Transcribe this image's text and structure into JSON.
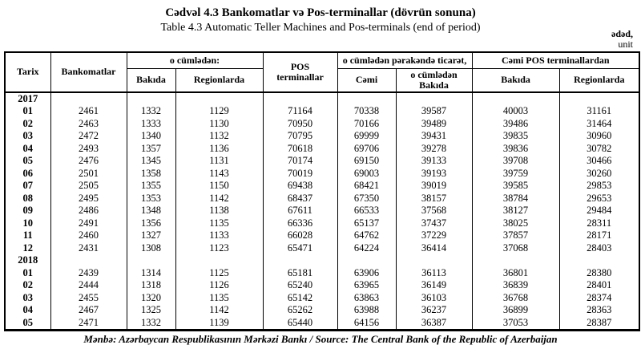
{
  "page": {
    "title_az": "Cədvəl 4.3 Bankomatlar və Pos-terminallar (dövrün sonuna)",
    "title_en": "Table 4.3 Automatic Teller Machines and Pos-terminals (end of period)",
    "unit_label_az": "ədəd,",
    "unit_label_en": "unit",
    "source_note": "Mənbə: Azərbaycan Respublikasının Mərkəzi Bankı / Source: The Central Bank of the Republic of Azerbaijan"
  },
  "table": {
    "headers": {
      "tarix": "Tarix",
      "bankomatlar": "Bankomatlar",
      "o_cumleden": "o cümlədən:",
      "bakida": "Bakıda",
      "regionlarda": "Regionlarda",
      "pos_terminallar": "POS terminallar",
      "perakende_ticaret": "o cümlədən pərakəndə ticarət,",
      "cemi": "Cəmi",
      "o_cumleden_bakida": "o cümlədən Bakıda",
      "cemi_pos_terminallardan": "Cəmi POS terminallardan",
      "bakida_pos": "Bakıda",
      "regionlarda_pos": "Regionlarda"
    },
    "groups": [
      {
        "year": "2017",
        "rows": [
          {
            "month": "01",
            "values": [
              "2461",
              "1332",
              "1129",
              "71164",
              "70338",
              "39587",
              "40003",
              "31161"
            ]
          },
          {
            "month": "02",
            "values": [
              "2463",
              "1333",
              "1130",
              "70950",
              "70166",
              "39489",
              "39486",
              "31464"
            ]
          },
          {
            "month": "03",
            "values": [
              "2472",
              "1340",
              "1132",
              "70795",
              "69999",
              "39431",
              "39835",
              "30960"
            ]
          },
          {
            "month": "04",
            "values": [
              "2493",
              "1357",
              "1136",
              "70618",
              "69706",
              "39278",
              "39836",
              "30782"
            ]
          },
          {
            "month": "05",
            "values": [
              "2476",
              "1345",
              "1131",
              "70174",
              "69150",
              "39133",
              "39708",
              "30466"
            ]
          },
          {
            "month": "06",
            "values": [
              "2501",
              "1358",
              "1143",
              "70019",
              "69003",
              "39193",
              "39759",
              "30260"
            ]
          },
          {
            "month": "07",
            "values": [
              "2505",
              "1355",
              "1150",
              "69438",
              "68421",
              "39019",
              "39585",
              "29853"
            ]
          },
          {
            "month": "08",
            "values": [
              "2495",
              "1353",
              "1142",
              "68437",
              "67350",
              "38157",
              "38784",
              "29653"
            ]
          },
          {
            "month": "09",
            "values": [
              "2486",
              "1348",
              "1138",
              "67611",
              "66533",
              "37568",
              "38127",
              "29484"
            ]
          },
          {
            "month": "10",
            "values": [
              "2491",
              "1356",
              "1135",
              "66336",
              "65137",
              "37437",
              "38025",
              "28311"
            ]
          },
          {
            "month": "11",
            "values": [
              "2460",
              "1327",
              "1133",
              "66028",
              "64762",
              "37229",
              "37857",
              "28171"
            ]
          },
          {
            "month": "12",
            "values": [
              "2431",
              "1308",
              "1123",
              "65471",
              "64224",
              "36414",
              "37068",
              "28403"
            ]
          }
        ]
      },
      {
        "year": "2018",
        "rows": [
          {
            "month": "01",
            "values": [
              "2439",
              "1314",
              "1125",
              "65181",
              "63906",
              "36113",
              "36801",
              "28380"
            ]
          },
          {
            "month": "02",
            "values": [
              "2444",
              "1318",
              "1126",
              "65240",
              "63965",
              "36149",
              "36839",
              "28401"
            ]
          },
          {
            "month": "03",
            "values": [
              "2455",
              "1320",
              "1135",
              "65142",
              "63863",
              "36103",
              "36768",
              "28374"
            ]
          },
          {
            "month": "04",
            "values": [
              "2467",
              "1325",
              "1142",
              "65262",
              "63988",
              "36237",
              "36899",
              "28363"
            ]
          },
          {
            "month": "05",
            "values": [
              "2471",
              "1332",
              "1139",
              "65440",
              "64156",
              "36387",
              "37053",
              "28387"
            ]
          }
        ]
      }
    ]
  }
}
